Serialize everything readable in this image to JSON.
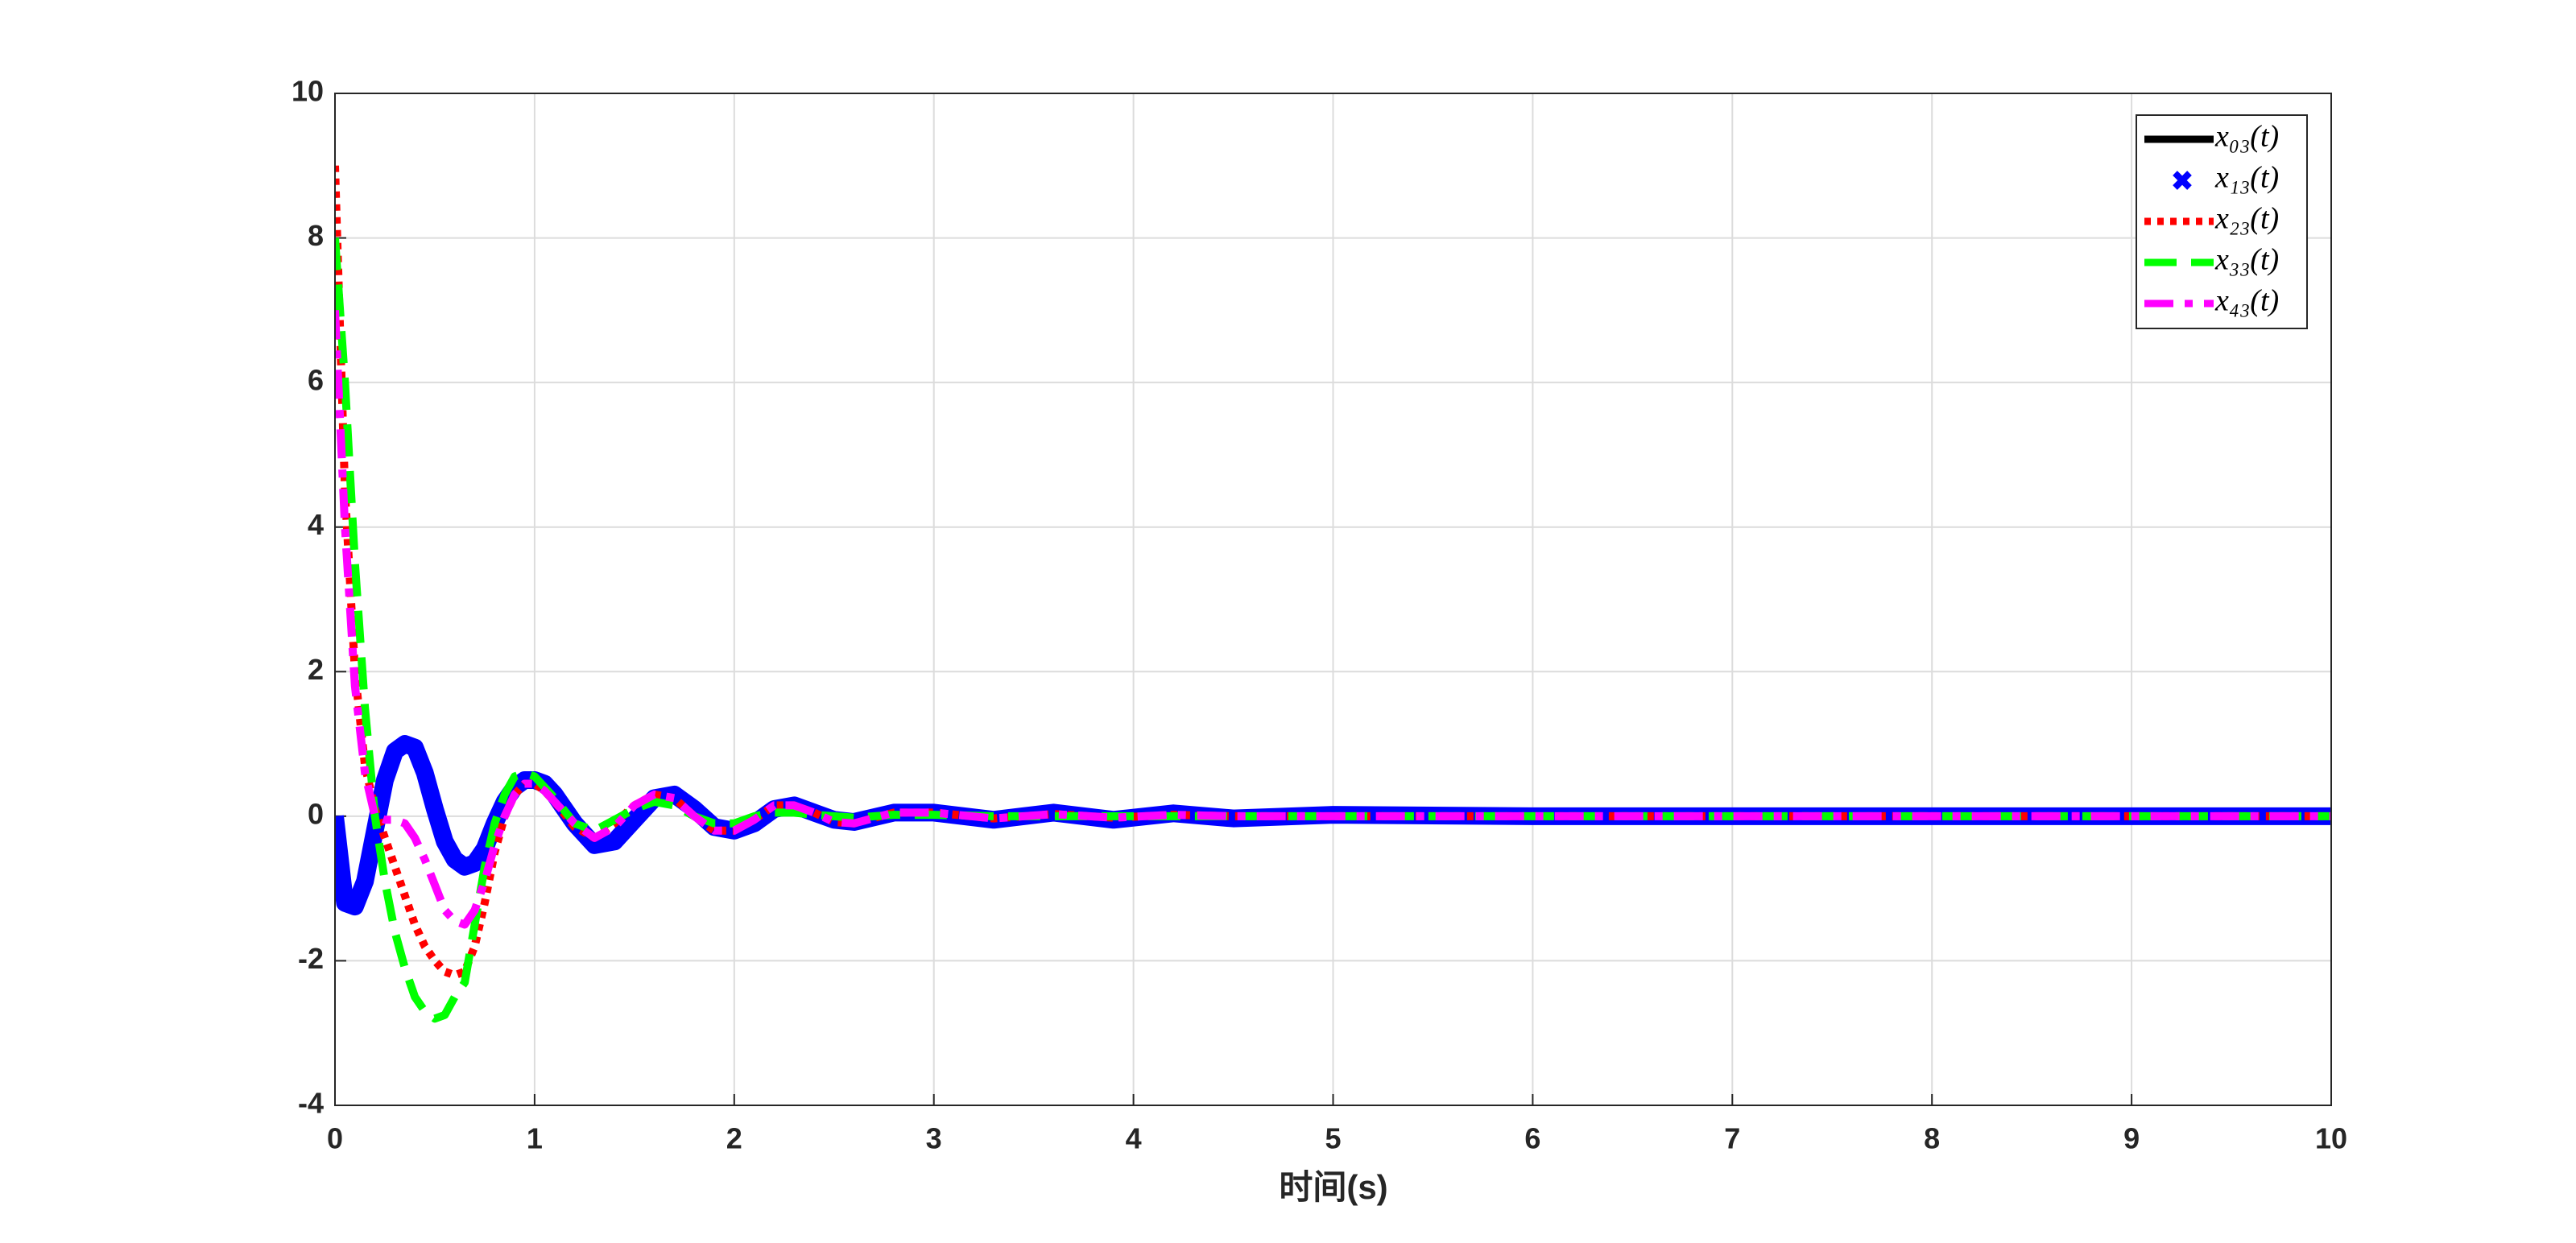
{
  "chart_data": {
    "type": "line",
    "x_label": "时间(s)",
    "x": [
      0,
      0.05,
      0.1,
      0.15,
      0.2,
      0.25,
      0.3,
      0.35,
      0.4,
      0.45,
      0.5,
      0.55,
      0.6,
      0.65,
      0.7,
      0.75,
      0.8,
      0.85,
      0.9,
      0.95,
      1.0,
      1.05,
      1.1,
      1.2,
      1.3,
      1.4,
      1.5,
      1.6,
      1.7,
      1.8,
      1.9,
      2.0,
      2.1,
      2.2,
      2.3,
      2.4,
      2.5,
      2.6,
      2.8,
      3.0,
      3.3,
      3.6,
      3.9,
      4.2,
      4.5,
      5,
      6,
      7,
      8,
      9,
      10
    ],
    "series": [
      {
        "name": "x₀₃(t)",
        "color": "#000000",
        "style": "solid",
        "values": [
          0,
          -1.2,
          -1.25,
          -0.9,
          -0.2,
          0.5,
          0.9,
          1.0,
          0.95,
          0.6,
          0.1,
          -0.35,
          -0.6,
          -0.7,
          -0.65,
          -0.45,
          -0.1,
          0.2,
          0.4,
          0.5,
          0.5,
          0.45,
          0.3,
          -0.1,
          -0.4,
          -0.35,
          -0.05,
          0.25,
          0.3,
          0.1,
          -0.15,
          -0.2,
          -0.1,
          0.1,
          0.15,
          0.05,
          -0.05,
          -0.08,
          0.05,
          0.05,
          -0.05,
          0.05,
          -0.05,
          0.04,
          -0.03,
          0.02,
          0,
          0,
          0,
          0,
          0
        ]
      },
      {
        "name": "x₁₃(t)",
        "color": "#0000ff",
        "style": "markers",
        "values": [
          0,
          -1.2,
          -1.25,
          -0.9,
          -0.2,
          0.5,
          0.9,
          1.0,
          0.95,
          0.6,
          0.1,
          -0.35,
          -0.6,
          -0.7,
          -0.65,
          -0.45,
          -0.1,
          0.2,
          0.4,
          0.5,
          0.5,
          0.45,
          0.3,
          -0.1,
          -0.4,
          -0.35,
          -0.05,
          0.25,
          0.3,
          0.1,
          -0.15,
          -0.2,
          -0.1,
          0.1,
          0.15,
          0.05,
          -0.05,
          -0.08,
          0.05,
          0.05,
          -0.05,
          0.05,
          -0.05,
          0.04,
          -0.03,
          0.02,
          0,
          0,
          0,
          0,
          0
        ]
      },
      {
        "name": "x₂₃(t)",
        "color": "#ff0000",
        "style": "dotted",
        "values": [
          9,
          4.5,
          2,
          0.7,
          0.1,
          -0.3,
          -0.7,
          -1.1,
          -1.5,
          -1.8,
          -2.0,
          -2.15,
          -2.2,
          -2.15,
          -1.8,
          -1.2,
          -0.5,
          0,
          0.3,
          0.45,
          0.45,
          0.35,
          0.2,
          -0.15,
          -0.3,
          -0.1,
          0.15,
          0.3,
          0.25,
          0,
          -0.2,
          -0.2,
          -0.05,
          0.15,
          0.15,
          0.05,
          -0.08,
          -0.1,
          0.05,
          0.05,
          -0.03,
          0.03,
          -0.02,
          0.02,
          0,
          0,
          0,
          0,
          0,
          0,
          0
        ]
      },
      {
        "name": "x₃₃(t)",
        "color": "#00ff00",
        "style": "dashed",
        "values": [
          8,
          6,
          3.5,
          1.5,
          0,
          -0.9,
          -1.6,
          -2.1,
          -2.5,
          -2.7,
          -2.8,
          -2.75,
          -2.5,
          -2.3,
          -1.5,
          -0.7,
          -0.1,
          0.3,
          0.55,
          0.6,
          0.55,
          0.4,
          0.25,
          -0.1,
          -0.2,
          -0.05,
          0.1,
          0.2,
          0.15,
          0,
          -0.1,
          -0.1,
          0,
          0.05,
          0.05,
          0.02,
          0,
          -0.02,
          0.02,
          0.02,
          0,
          0,
          0,
          0,
          0,
          0,
          0,
          0,
          0,
          0,
          0
        ]
      },
      {
        "name": "x₄₃(t)",
        "color": "#ff00ff",
        "style": "dashdot",
        "values": [
          7,
          4,
          1.8,
          0.6,
          0,
          -0.05,
          -0.05,
          -0.1,
          -0.3,
          -0.6,
          -0.95,
          -1.3,
          -1.45,
          -1.5,
          -1.3,
          -0.9,
          -0.4,
          0,
          0.3,
          0.45,
          0.45,
          0.35,
          0.2,
          -0.1,
          -0.3,
          -0.15,
          0.15,
          0.3,
          0.25,
          0,
          -0.2,
          -0.2,
          -0.05,
          0.15,
          0.15,
          0.05,
          -0.08,
          -0.1,
          0.05,
          0.05,
          -0.03,
          0.03,
          -0.02,
          0.02,
          0,
          0,
          0,
          0,
          0,
          0,
          0
        ]
      }
    ],
    "xlim": [
      0,
      10
    ],
    "xticks": [
      0,
      1,
      2,
      3,
      4,
      5,
      6,
      7,
      8,
      9,
      10
    ],
    "ylim": [
      -4,
      10
    ],
    "yticks": [
      -4,
      -2,
      0,
      2,
      4,
      6,
      8,
      10
    ],
    "grid": true,
    "legend": "northeast"
  }
}
